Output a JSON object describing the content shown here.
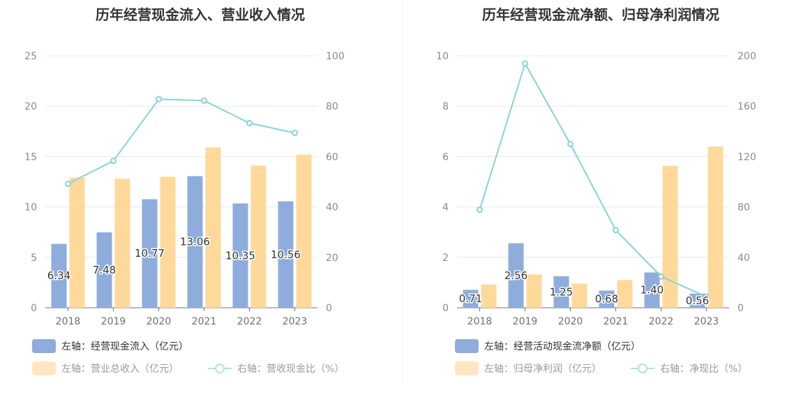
{
  "colors": {
    "bar1": "#8eaddc",
    "bar2": "#ffd99a",
    "line": "#86d3d8",
    "line_legend": "#aee3e6",
    "legend1_text": "#333333",
    "legend_faded_text": "#9a9a9a",
    "legend2_swatch": "#ffe6c2",
    "grid": "#e3e8f3"
  },
  "chart_data": [
    {
      "type": "bar",
      "title": "历年经营现金流入、营业收入情况",
      "categories": [
        "2018",
        "2019",
        "2020",
        "2021",
        "2022",
        "2023"
      ],
      "left_axis": {
        "ylim": [
          0,
          25
        ],
        "ticks": [
          "0",
          "5",
          "10",
          "15",
          "20",
          "25"
        ]
      },
      "right_axis": {
        "ylim": [
          0,
          100
        ],
        "ticks": [
          "0",
          "20",
          "40",
          "60",
          "80",
          "100"
        ]
      },
      "series": [
        {
          "name": "左轴：经营现金流入（亿元）",
          "type": "bar",
          "axis": "left",
          "values": [
            6.34,
            7.48,
            10.77,
            13.06,
            10.35,
            10.56
          ],
          "labels": [
            "6.34",
            "7.48",
            "10.77",
            "13.06",
            "10.35",
            "10.56"
          ]
        },
        {
          "name": "左轴：营业总收入（亿元）",
          "type": "bar",
          "axis": "left",
          "values": [
            12.9,
            12.8,
            13.0,
            15.9,
            14.1,
            15.2
          ]
        },
        {
          "name": "右轴：营收现金比（%）",
          "type": "line",
          "axis": "right",
          "values": [
            49.2,
            58.3,
            82.8,
            82.2,
            73.3,
            69.4
          ]
        }
      ]
    },
    {
      "type": "bar",
      "title": "历年经营现金流净额、归母净利润情况",
      "categories": [
        "2018",
        "2019",
        "2020",
        "2021",
        "2022",
        "2023"
      ],
      "left_axis": {
        "ylim": [
          0,
          10
        ],
        "ticks": [
          "0",
          "2",
          "4",
          "6",
          "8",
          "10"
        ]
      },
      "right_axis": {
        "ylim": [
          0,
          200
        ],
        "ticks": [
          "0",
          "40",
          "80",
          "120",
          "160",
          "200"
        ]
      },
      "series": [
        {
          "name": "左轴：经营活动现金流净额（亿元）",
          "type": "bar",
          "axis": "left",
          "values": [
            0.71,
            2.56,
            1.25,
            0.68,
            1.4,
            0.56
          ],
          "labels": [
            "0.71",
            "2.56",
            "1.25",
            "0.68",
            "1.40",
            "0.56"
          ]
        },
        {
          "name": "左轴：归母净利润（亿元）",
          "type": "bar",
          "axis": "left",
          "values": [
            0.92,
            1.32,
            0.96,
            1.1,
            5.63,
            6.4
          ]
        },
        {
          "name": "右轴：净现比（%）",
          "type": "line",
          "axis": "right",
          "values": [
            77.8,
            193.9,
            129.9,
            61.6,
            24.8,
            8.7
          ]
        }
      ]
    }
  ]
}
